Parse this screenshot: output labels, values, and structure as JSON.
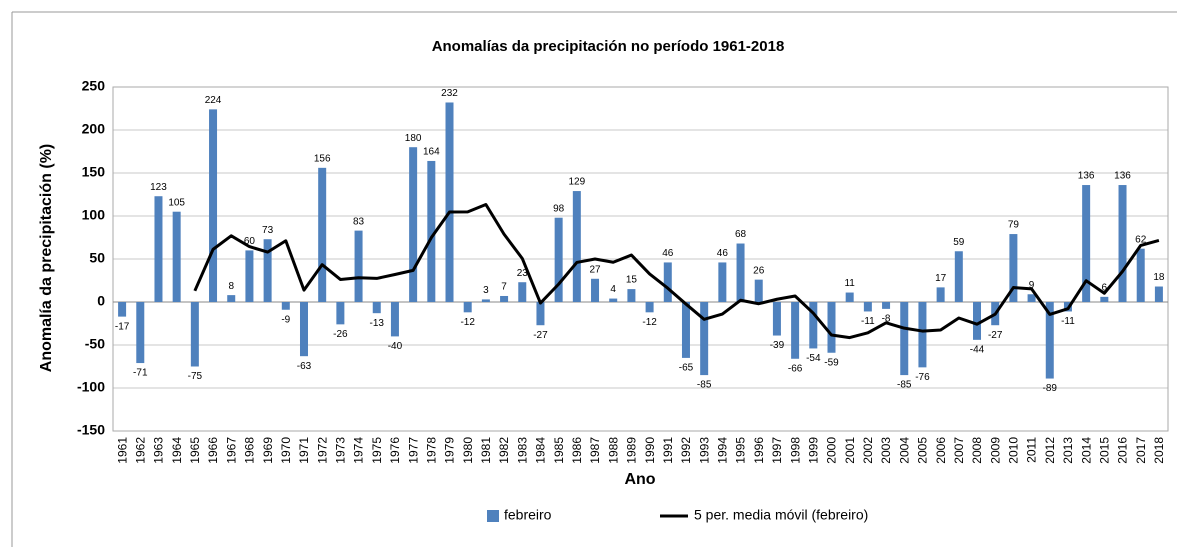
{
  "chart_data": {
    "type": "bar",
    "title": "Anomalías  da  precipitación  no  período  1961-2018",
    "x_label": "Ano",
    "y_label": "Anomalía da precipitación (%)",
    "categories": [
      "1961",
      "1962",
      "1963",
      "1964",
      "1965",
      "1966",
      "1967",
      "1968",
      "1969",
      "1970",
      "1971",
      "1972",
      "1973",
      "1974",
      "1975",
      "1976",
      "1977",
      "1978",
      "1979",
      "1980",
      "1981",
      "1982",
      "1983",
      "1984",
      "1985",
      "1986",
      "1987",
      "1988",
      "1989",
      "1990",
      "1991",
      "1992",
      "1993",
      "1994",
      "1995",
      "1996",
      "1997",
      "1998",
      "1999",
      "2000",
      "2001",
      "2002",
      "2003",
      "2004",
      "2005",
      "2006",
      "2007",
      "2008",
      "2009",
      "2010",
      "2011",
      "2012",
      "2013",
      "2014",
      "2015",
      "2016",
      "2017",
      "2018"
    ],
    "series": [
      {
        "name": "febreiro",
        "type": "bar",
        "color": "#4f81bd",
        "values": [
          -17,
          -71,
          123,
          105,
          -75,
          224,
          8,
          60,
          73,
          -9,
          -63,
          156,
          -26,
          83,
          -13,
          -40,
          180,
          164,
          232,
          -12,
          3,
          7,
          23,
          -27,
          98,
          129,
          27,
          4,
          15,
          -12,
          46,
          -65,
          -85,
          46,
          68,
          26,
          -39,
          -66,
          -54,
          -59,
          11,
          -11,
          -8,
          -85,
          -76,
          17,
          59,
          -44,
          -27,
          79,
          9,
          -89,
          -11,
          136,
          6,
          136,
          62,
          18
        ]
      },
      {
        "name": "5 per. media móvil (febreiro)",
        "type": "line",
        "color": "#000000",
        "values": [
          null,
          null,
          null,
          null,
          13,
          61.2,
          77,
          64.4,
          58,
          71.2,
          13.8,
          43.4,
          26.2,
          28.2,
          27.4,
          32,
          36.8,
          74.8,
          104.6,
          104.8,
          113.4,
          78.8,
          50.6,
          -1.2,
          20.8,
          46,
          50,
          46.2,
          54.6,
          32.6,
          16,
          -2.4,
          -20.2,
          -14,
          2,
          -2,
          3.2,
          7,
          -13,
          -38.4,
          -41.4,
          -35.8,
          -24.2,
          -30.4,
          -33.8,
          -32.6,
          -18.6,
          -25.8,
          -14.2,
          16.8,
          15.2,
          -14.4,
          -7.8,
          24.8,
          10.2,
          35.6,
          65.8,
          71.6
        ]
      }
    ],
    "ylim": [
      -150,
      250
    ],
    "yticks": [
      -150,
      -100,
      -50,
      0,
      50,
      100,
      150,
      200,
      250
    ],
    "grid": true,
    "legend": "bottom"
  }
}
